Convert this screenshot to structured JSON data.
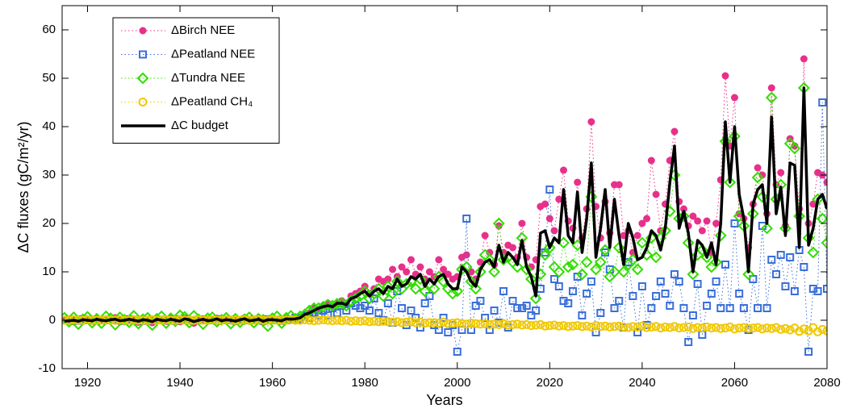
{
  "chart_data": {
    "type": "line",
    "x_label": "Years",
    "y_label": "ΔC fluxes (gC/m²/yr)",
    "xlim": [
      1914.5,
      2080
    ],
    "ylim": [
      -10,
      65
    ],
    "xticks": [
      1920,
      1940,
      1960,
      1980,
      2000,
      2020,
      2040,
      2060,
      2080
    ],
    "yticks": [
      -10,
      0,
      10,
      20,
      30,
      40,
      50,
      60
    ],
    "legend": "upper left",
    "x": [
      1915,
      1916,
      1917,
      1918,
      1919,
      1920,
      1921,
      1922,
      1923,
      1924,
      1925,
      1926,
      1927,
      1928,
      1929,
      1930,
      1931,
      1932,
      1933,
      1934,
      1935,
      1936,
      1937,
      1938,
      1939,
      1940,
      1941,
      1942,
      1943,
      1944,
      1945,
      1946,
      1947,
      1948,
      1949,
      1950,
      1951,
      1952,
      1953,
      1954,
      1955,
      1956,
      1957,
      1958,
      1959,
      1960,
      1961,
      1962,
      1963,
      1964,
      1965,
      1966,
      1967,
      1968,
      1969,
      1970,
      1971,
      1972,
      1973,
      1974,
      1975,
      1976,
      1977,
      1978,
      1979,
      1980,
      1981,
      1982,
      1983,
      1984,
      1985,
      1986,
      1987,
      1988,
      1989,
      1990,
      1991,
      1992,
      1993,
      1994,
      1995,
      1996,
      1997,
      1998,
      1999,
      2000,
      2001,
      2002,
      2003,
      2004,
      2005,
      2006,
      2007,
      2008,
      2009,
      2010,
      2011,
      2012,
      2013,
      2014,
      2015,
      2016,
      2017,
      2018,
      2019,
      2020,
      2021,
      2022,
      2023,
      2024,
      2025,
      2026,
      2027,
      2028,
      2029,
      2030,
      2031,
      2032,
      2033,
      2034,
      2035,
      2036,
      2037,
      2038,
      2039,
      2040,
      2041,
      2042,
      2043,
      2044,
      2045,
      2046,
      2047,
      2048,
      2049,
      2050,
      2051,
      2052,
      2053,
      2054,
      2055,
      2056,
      2057,
      2058,
      2059,
      2060,
      2061,
      2062,
      2063,
      2064,
      2065,
      2066,
      2067,
      2068,
      2069,
      2070,
      2071,
      2072,
      2073,
      2074,
      2075,
      2076,
      2077,
      2078,
      2079,
      2080
    ],
    "series": [
      {
        "name": "ΔBirch NEE",
        "color": "#e8308a",
        "marker": "dot",
        "values": [
          0,
          0.2,
          -0.3,
          0.1,
          0.3,
          0,
          -0.2,
          0.4,
          0.1,
          -0.1,
          0.2,
          0.5,
          -0.3,
          0,
          0.3,
          0.1,
          -0.4,
          0.2,
          0,
          -0.5,
          0.3,
          0.1,
          -0.2,
          0.4,
          0,
          -0.3,
          0.5,
          0.2,
          -0.6,
          0.1,
          0.3,
          -0.2,
          0,
          0.4,
          -0.1,
          0.2,
          0,
          -0.3,
          0.1,
          0.5,
          -0.2,
          0,
          0.3,
          -0.4,
          0.1,
          0.2,
          0,
          -0.2,
          0.4,
          0.3,
          0.5,
          0.3,
          1.0,
          1.5,
          2.5,
          2.0,
          3.0,
          3.5,
          2.8,
          3.5,
          4.0,
          3.5,
          5.0,
          5.5,
          6.0,
          7.0,
          5.5,
          6.5,
          8.5,
          8.0,
          8.5,
          10.5,
          9.0,
          11.0,
          10.0,
          12.5,
          9.5,
          11.0,
          8.5,
          10.0,
          9.0,
          12.5,
          10.5,
          9.5,
          8.5,
          9.0,
          13.0,
          13.5,
          10.0,
          8.5,
          12.0,
          17.5,
          14.0,
          11.5,
          19.5,
          14.0,
          15.5,
          15.0,
          13.0,
          20.0,
          13.0,
          11.0,
          12.5,
          23.5,
          24.0,
          21.0,
          18.5,
          25.0,
          31.0,
          20.5,
          19.0,
          28.5,
          17.0,
          23.0,
          41.0,
          23.5,
          17.0,
          24.5,
          18.0,
          28.0,
          28.0,
          17.5,
          18.5,
          14.0,
          17.5,
          20.0,
          21.0,
          33.0,
          26.0,
          18.5,
          24.0,
          33.0,
          39.0,
          24.5,
          23.0,
          19.5,
          21.5,
          20.5,
          18.5,
          20.5,
          14.0,
          20.0,
          29.0,
          50.5,
          36.0,
          46.0,
          22.0,
          21.0,
          15.0,
          24.0,
          31.5,
          30.0,
          22.0,
          48.0,
          28.0,
          30.5,
          19.5,
          37.5,
          36.0,
          23.0,
          54.0,
          20.0,
          24.0,
          30.5,
          30.0,
          28.5
        ]
      },
      {
        "name": "ΔPeatland NEE",
        "color": "#3a6fd8",
        "marker": "square",
        "values": [
          0,
          0.1,
          0,
          -0.1,
          0.2,
          0,
          0.1,
          -0.1,
          0,
          0.1,
          0,
          0.1,
          0,
          -0.1,
          0.2,
          0,
          0.1,
          -0.1,
          0,
          0.1,
          0,
          0.1,
          0,
          -0.1,
          0.2,
          0,
          0.1,
          -0.1,
          0,
          0.1,
          0,
          0.1,
          0,
          -0.1,
          0.2,
          0,
          0.1,
          -0.1,
          0,
          0.1,
          0,
          0.1,
          0,
          -0.1,
          0.2,
          0,
          0.1,
          -0.1,
          0,
          0.1,
          0.5,
          0.2,
          1.0,
          0.5,
          1.5,
          1.0,
          2.0,
          1.0,
          2.5,
          1.5,
          3.0,
          2.0,
          3.5,
          3.0,
          2.5,
          3.0,
          2.0,
          4.5,
          1.5,
          0,
          3.5,
          -0.5,
          6.0,
          2.5,
          -1.0,
          2.0,
          0.5,
          -1.5,
          3.5,
          5.0,
          -1.0,
          -2.0,
          0.5,
          -2.5,
          -1.0,
          -6.5,
          -2.0,
          21.0,
          -2.0,
          3.0,
          4.0,
          0.5,
          -2.0,
          2.0,
          -0.5,
          6.0,
          -1.5,
          4.0,
          2.5,
          2.5,
          3.0,
          1.0,
          2.0,
          6.5,
          14.0,
          27.0,
          8.5,
          7.0,
          4.0,
          3.5,
          6.0,
          9.0,
          1.0,
          5.5,
          8.0,
          -2.5,
          1.5,
          14.0,
          10.5,
          2.5,
          4.0,
          -1.5,
          12.0,
          5.0,
          -2.5,
          7.0,
          -1.0,
          2.5,
          5.0,
          8.0,
          5.5,
          3.0,
          9.5,
          8.0,
          2.5,
          -4.5,
          1.0,
          7.5,
          -3.0,
          3.0,
          5.5,
          8.0,
          2.5,
          11.5,
          2.5,
          20.0,
          5.5,
          2.5,
          -2.0,
          8.5,
          2.5,
          19.5,
          2.5,
          12.5,
          9.5,
          13.5,
          7.0,
          13.0,
          6.0,
          14.5,
          11.0,
          -6.5,
          6.5,
          6.0,
          45.0,
          6.5
        ]
      },
      {
        "name": "ΔTundra NEE",
        "color": "#33dd00",
        "marker": "diamond",
        "values": [
          0.5,
          -0.3,
          0.6,
          -0.8,
          0.2,
          0.7,
          -0.5,
          0.3,
          -0.6,
          0.8,
          0.4,
          -0.9,
          0.6,
          0.1,
          -0.4,
          0.9,
          -0.7,
          0.2,
          0.5,
          -1.0,
          0.3,
          0.8,
          -0.6,
          0.4,
          -0.2,
          1.0,
          0.7,
          -0.5,
          0.9,
          0.2,
          -0.8,
          0.4,
          0.6,
          -0.3,
          0.1,
          0.5,
          -0.7,
          0.3,
          -0.4,
          0.2,
          0.6,
          -0.5,
          0.3,
          0.1,
          -1.2,
          0.4,
          0.8,
          -0.6,
          0.5,
          0.9,
          0.3,
          0.8,
          1.2,
          2.0,
          2.5,
          2.5,
          2.8,
          3.2,
          3.0,
          3.4,
          3.5,
          3.0,
          4.0,
          4.5,
          5.0,
          6.0,
          4.5,
          5.5,
          6.5,
          5.0,
          7.0,
          5.5,
          8.0,
          6.5,
          7.5,
          8.0,
          6.5,
          8.5,
          6.0,
          7.5,
          6.5,
          9.0,
          8.0,
          6.5,
          5.5,
          6.0,
          10.5,
          11.0,
          8.0,
          6.5,
          10.0,
          13.5,
          12.5,
          10.0,
          20.0,
          12.5,
          13.0,
          12.0,
          11.0,
          17.0,
          10.5,
          8.5,
          4.5,
          9.5,
          13.5,
          15.0,
          11.0,
          10.0,
          16.0,
          11.0,
          11.5,
          15.5,
          9.5,
          12.0,
          25.5,
          10.5,
          12.0,
          14.5,
          9.0,
          10.0,
          15.0,
          10.0,
          11.5,
          12.5,
          10.5,
          16.0,
          13.5,
          17.0,
          13.0,
          17.0,
          18.5,
          22.5,
          30.0,
          21.0,
          21.5,
          16.0,
          9.5,
          13.5,
          14.5,
          13.0,
          11.0,
          12.0,
          17.5,
          37.0,
          28.5,
          38.0,
          21.5,
          19.5,
          9.5,
          22.0,
          29.5,
          25.5,
          19.0,
          46.0,
          25.0,
          28.0,
          19.0,
          36.5,
          35.5,
          21.5,
          48.0,
          17.0,
          14.0,
          25.0,
          21.0,
          16.0
        ]
      },
      {
        "name": "ΔPeatland CH₄",
        "color": "#f0c800",
        "marker": "circle",
        "values": [
          0,
          0,
          0.1,
          0,
          0,
          0.1,
          0,
          0,
          0,
          0.1,
          0,
          0,
          0.1,
          0,
          0,
          0.1,
          0,
          0,
          0,
          0.1,
          0,
          0,
          0.1,
          0,
          0,
          0.1,
          0,
          0,
          0,
          0.1,
          0,
          0,
          0.1,
          0,
          0,
          0.1,
          0,
          0,
          0,
          0.1,
          0,
          0,
          0.1,
          0,
          0,
          0.1,
          0,
          0,
          0,
          0.1,
          0,
          0,
          0.1,
          0,
          -0.1,
          0,
          0.1,
          0,
          -0.1,
          0,
          -0.1,
          0,
          -0.2,
          -0.1,
          -0.2,
          -0.1,
          -0.3,
          -0.2,
          -0.3,
          -0.2,
          -0.3,
          -0.4,
          -0.3,
          -0.5,
          -0.4,
          -0.3,
          -0.5,
          -0.4,
          -0.6,
          -0.5,
          -0.5,
          -0.6,
          -0.4,
          -0.7,
          -0.6,
          -0.5,
          -0.7,
          -0.8,
          -0.6,
          -0.7,
          -0.8,
          -0.7,
          -0.9,
          -0.8,
          -0.9,
          -0.7,
          -1.0,
          -0.9,
          -0.8,
          -1.0,
          -0.9,
          -1.1,
          -1.0,
          -0.9,
          -1.2,
          -1.1,
          -1.0,
          -1.2,
          -1.1,
          -1.3,
          -1.2,
          -1.1,
          -1.3,
          -1.2,
          -1.4,
          -1.1,
          -1.3,
          -1.2,
          -1.4,
          -1.3,
          -1.2,
          -1.4,
          -1.5,
          -1.3,
          -1.4,
          -1.2,
          -1.5,
          -1.4,
          -1.3,
          -1.6,
          -1.4,
          -1.5,
          -1.3,
          -1.6,
          -1.5,
          -1.4,
          -1.7,
          -1.5,
          -1.6,
          -1.4,
          -1.6,
          -1.5,
          -1.7,
          -1.6,
          -1.4,
          -1.8,
          -1.6,
          -1.5,
          -1.7,
          -1.6,
          -1.5,
          -1.8,
          -1.6,
          -1.7,
          -1.5,
          -1.9,
          -1.7,
          -2.0,
          -1.6,
          -2.3,
          -1.8,
          -2.2,
          -1.5,
          -2.4,
          -1.9,
          -2.2
        ]
      },
      {
        "name": "ΔC budget",
        "color": "#000000",
        "marker": "none",
        "values": [
          -0.2,
          -0.1,
          0,
          -0.2,
          0.1,
          0,
          -0.1,
          0.2,
          0,
          -0.1,
          0.1,
          0.2,
          -0.1,
          0,
          0.2,
          0,
          -0.2,
          0.1,
          0,
          -0.3,
          0.2,
          0,
          -0.1,
          0.2,
          0,
          -0.2,
          0.3,
          0.1,
          -0.3,
          0,
          0.2,
          -0.1,
          0,
          0.3,
          -0.1,
          0.1,
          0,
          -0.2,
          0.1,
          0.3,
          -0.1,
          0,
          0.2,
          -0.2,
          0.1,
          0.1,
          0,
          -0.1,
          0.3,
          0.2,
          0.3,
          0.5,
          1.2,
          1.5,
          2.0,
          2.5,
          2.8,
          3.0,
          2.8,
          3.5,
          3.5,
          3.2,
          4.5,
          4.8,
          5.5,
          6.0,
          5.0,
          6.0,
          6.5,
          5.5,
          7.0,
          6.5,
          8.5,
          7.0,
          7.5,
          9.0,
          8.5,
          9.5,
          7.0,
          8.5,
          7.5,
          9.0,
          9.5,
          7.5,
          6.5,
          6.5,
          11.0,
          10.0,
          8.0,
          7.0,
          10.5,
          12.0,
          12.5,
          11.0,
          15.5,
          12.0,
          14.0,
          13.0,
          11.5,
          16.5,
          11.0,
          9.0,
          5.0,
          18.0,
          18.5,
          15.0,
          17.0,
          16.0,
          27.0,
          17.5,
          16.0,
          26.5,
          14.0,
          21.0,
          32.5,
          13.0,
          19.0,
          27.0,
          15.0,
          25.0,
          17.5,
          11.5,
          20.0,
          17.0,
          12.5,
          13.0,
          15.0,
          18.5,
          17.5,
          14.5,
          19.0,
          28.5,
          36.0,
          19.0,
          22.5,
          18.0,
          10.0,
          16.5,
          15.5,
          13.0,
          16.0,
          11.5,
          20.0,
          41.0,
          28.5,
          40.0,
          26.0,
          21.0,
          10.0,
          24.0,
          27.0,
          28.0,
          20.0,
          42.0,
          22.0,
          27.5,
          17.5,
          32.5,
          32.0,
          15.0,
          48.0,
          15.5,
          19.0,
          25.0,
          26.0,
          23.0
        ]
      }
    ]
  }
}
